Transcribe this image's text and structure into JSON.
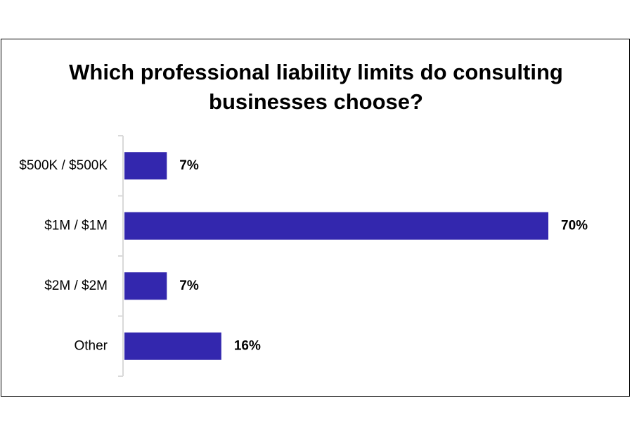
{
  "chart_data": {
    "type": "bar",
    "orientation": "horizontal",
    "title": "Which professional liability limits do consulting\nbusinesses choose?",
    "categories": [
      "$500K / $500K",
      "$1M / $1M",
      "$2M / $2M",
      "Other"
    ],
    "values": [
      7,
      70,
      7,
      16
    ],
    "value_labels": [
      "7%",
      "70%",
      "7%",
      "16%"
    ],
    "xlim": [
      0,
      70
    ],
    "grid": false,
    "legend": "none",
    "bar_color": "#3327ae",
    "axis_color": "#d9d9d9"
  }
}
